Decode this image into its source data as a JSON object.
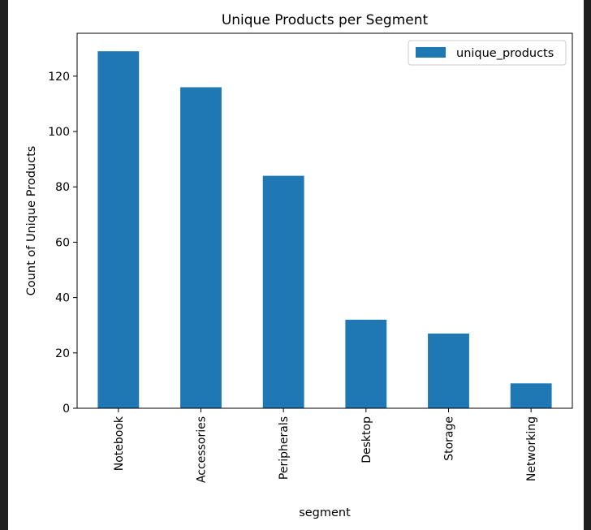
{
  "chart_data": {
    "type": "bar",
    "title": "Unique Products per Segment",
    "xlabel": "segment",
    "ylabel": "Count of Unique Products",
    "categories": [
      "Notebook",
      "Accessories",
      "Peripherals",
      "Desktop",
      "Storage",
      "Networking"
    ],
    "series": [
      {
        "name": "unique_products",
        "values": [
          129,
          116,
          84,
          32,
          27,
          9
        ]
      }
    ],
    "ylim": [
      0,
      135.5
    ],
    "yticks": [
      0,
      20,
      40,
      60,
      80,
      100,
      120
    ],
    "grid": false,
    "legend_position": "top-right",
    "colors": {
      "bar": "#1f77b4",
      "axes": "#000000",
      "background": "#ffffff"
    }
  }
}
